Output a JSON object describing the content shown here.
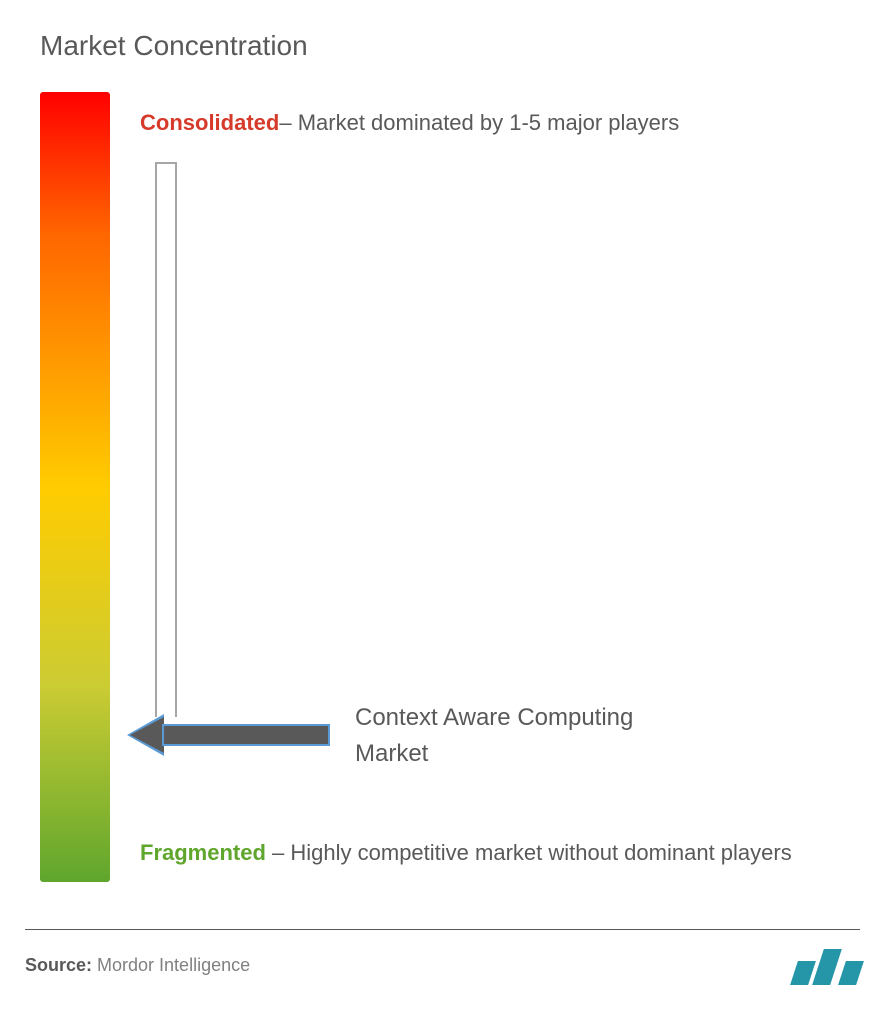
{
  "title": "Market Concentration",
  "gradient": {
    "top_color": "#ff0000",
    "mid1_color": "#ff6600",
    "mid2_color": "#ffcc00",
    "mid3_color": "#cccc33",
    "bottom_color": "#5fa62d"
  },
  "top_label": {
    "key": "Consolidated",
    "key_color": "#d63a2a",
    "desc": "– Market dominated by 1-5 major players"
  },
  "bottom_label": {
    "key": "Fragmented",
    "key_color": "#5fa62d",
    "desc": " – Highly competitive market without dominant players"
  },
  "arrow": {
    "label": "Context Aware Computing Market",
    "fill": "#595959",
    "border": "#5b9bd5",
    "position_pct": 78
  },
  "footer": {
    "source_label": "Source:",
    "source_value": " Mordor Intelligence",
    "logo_color": "#2596a8"
  },
  "styling": {
    "title_color": "#595959",
    "title_fontsize": 28,
    "body_text_color": "#595959",
    "body_fontsize": 22,
    "bracket_color": "#a6a6a6",
    "background": "#ffffff"
  }
}
